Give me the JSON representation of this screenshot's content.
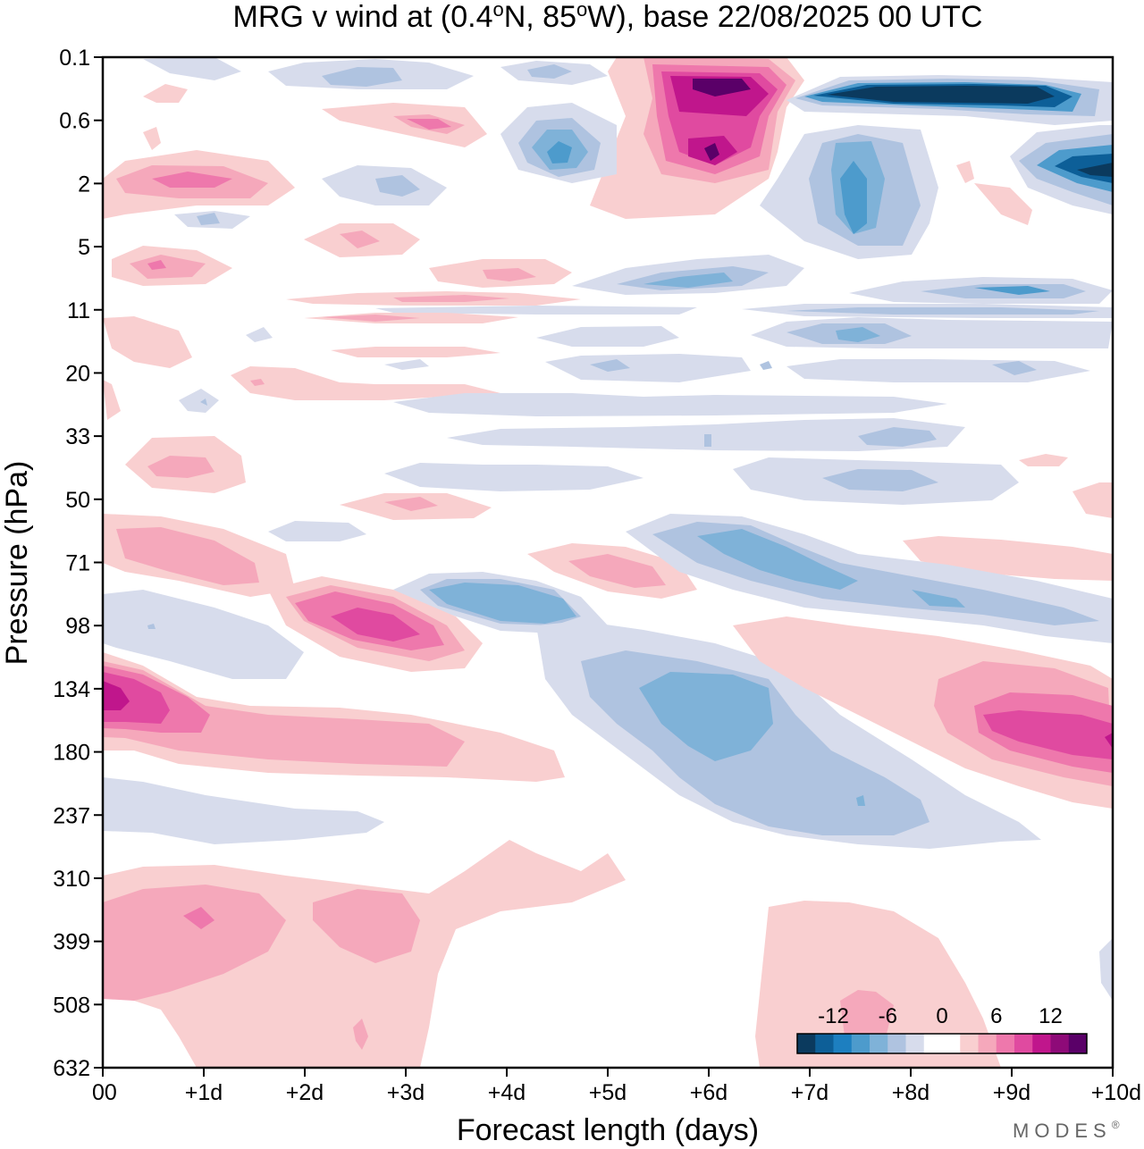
{
  "chart_data": {
    "type": "heatmap",
    "title": "MRG v wind at (0.4°N, 85°W),  base 22/08/2025  00 UTC",
    "title_parts": {
      "prefix": "MRG v wind at (0.4",
      "deg1": "o",
      "mid": "N, 85",
      "deg2": "o",
      "suffix": "W),  base 22/08/2025  00 UTC"
    },
    "xlabel": "Forecast length (days)",
    "ylabel": "Pressure (hPa)",
    "x_ticks": [
      "00",
      "+1d",
      "+2d",
      "+3d",
      "+4d",
      "+5d",
      "+6d",
      "+7d",
      "+8d",
      "+9d",
      "+10d"
    ],
    "xlim": [
      0,
      10
    ],
    "y_ticks": [
      "0.1",
      "0.6",
      "2",
      "5",
      "11",
      "20",
      "33",
      "50",
      "71",
      "98",
      "134",
      "180",
      "237",
      "310",
      "399",
      "508",
      "632"
    ],
    "y_scale": "log-like pressure, top 0.1 hPa to bottom 632 hPa",
    "colorbar": {
      "placement": "bottom-right",
      "ticks": [
        "-12",
        "-6",
        "0",
        "6",
        "12"
      ],
      "colors": [
        "#0b3a5e",
        "#0d5f98",
        "#1d7fc0",
        "#4d9bcc",
        "#7fb2d8",
        "#afc3e0",
        "#d7dcec",
        "#ffffff",
        "#ffffff",
        "#f9cfd0",
        "#f5a8bb",
        "#ee78ac",
        "#e04aa0",
        "#c0168c",
        "#8e0a78",
        "#5a0068"
      ]
    },
    "regions": [
      {
        "sign": "positive",
        "level": 8,
        "label": "peak +6d near 1 hPa"
      },
      {
        "sign": "negative",
        "level": 7,
        "label": "minimum +7d to +10d near 0.3 hPa"
      },
      {
        "sign": "positive",
        "level": 5,
        "label": "maximum 00 to +1d near 134 hPa"
      },
      {
        "sign": "negative",
        "level": 3,
        "label": "minimum +5.5d to +7d near 134 hPa"
      },
      {
        "sign": "positive",
        "level": 5,
        "label": "maximum +9d to +10d near 180 hPa"
      },
      {
        "sign": "positive",
        "level": 4,
        "label": "maximum +2.5d near 98 hPa"
      }
    ]
  },
  "branding": {
    "text": "MODES",
    "mark": "®"
  }
}
